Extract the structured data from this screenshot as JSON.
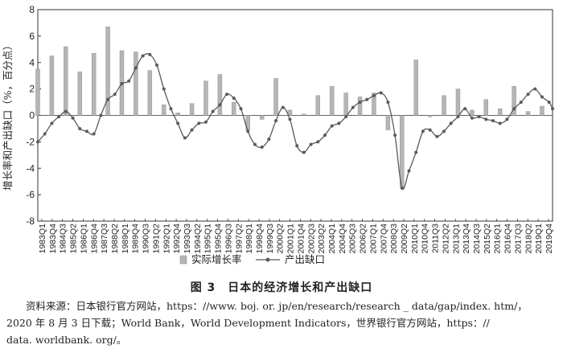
{
  "chart_data": {
    "type": "bar+line",
    "ylabel": "增长率和产出缺口（%，百分点）",
    "ylim": [
      -8,
      8
    ],
    "yticks": [
      -8,
      -6,
      -4,
      -2,
      0,
      2,
      4,
      6,
      8
    ],
    "xlabels": [
      "1983Q1",
      "1983Q4",
      "1984Q3",
      "1985Q2",
      "1986Q1",
      "1986Q4",
      "1987Q3",
      "1988Q2",
      "1989Q1",
      "1989Q4",
      "1990Q3",
      "1991Q2",
      "1992Q1",
      "1992Q4",
      "1993Q3",
      "1994Q2",
      "1995Q1",
      "1995Q4",
      "1996Q3",
      "1997Q2",
      "1998Q1",
      "1998Q4",
      "1999Q3",
      "2000Q2",
      "2001Q1",
      "2001Q4",
      "2002Q3",
      "2003Q2",
      "2004Q1",
      "2004Q4",
      "2005Q3",
      "2006Q2",
      "2007Q1",
      "2007Q4",
      "2008Q3",
      "2009Q2",
      "2010Q1",
      "2010Q4",
      "2011Q3",
      "2012Q2",
      "2013Q1",
      "2013Q4",
      "2014Q3",
      "2015Q2",
      "2016Q1",
      "2016Q4",
      "2017Q3",
      "2018Q2",
      "2019Q1",
      "2019Q4"
    ],
    "grid": false,
    "legend_position": "bottom",
    "series": [
      {
        "name": "实际增长率",
        "kind": "bar",
        "color": "#b5b5b5",
        "x": [
          "1983",
          "1984",
          "1985",
          "1986",
          "1987",
          "1988",
          "1989",
          "1990",
          "1991",
          "1992",
          "1993",
          "1994",
          "1995",
          "1996",
          "1997",
          "1998",
          "1999",
          "2000",
          "2001",
          "2002",
          "2003",
          "2004",
          "2005",
          "2006",
          "2007",
          "2008",
          "2009",
          "2010",
          "2011",
          "2012",
          "2013",
          "2014",
          "2015",
          "2016",
          "2017",
          "2018",
          "2019"
        ],
        "values": [
          3.5,
          4.5,
          5.2,
          3.3,
          4.7,
          6.7,
          4.9,
          4.8,
          3.4,
          0.8,
          0.2,
          0.9,
          2.6,
          3.1,
          1.0,
          -1.1,
          -0.3,
          2.8,
          0.4,
          0.1,
          1.5,
          2.2,
          1.7,
          1.4,
          1.7,
          -1.1,
          -5.4,
          4.2,
          -0.1,
          1.5,
          2.0,
          0.4,
          1.2,
          0.5,
          2.2,
          0.3,
          0.7
        ]
      },
      {
        "name": "产出缺口",
        "kind": "line",
        "color": "#5a5a5a",
        "x": [
          "1983",
          "1983.5",
          "1984",
          "1984.5",
          "1985",
          "1985.5",
          "1986",
          "1986.5",
          "1987",
          "1987.5",
          "1988",
          "1988.5",
          "1989",
          "1989.5",
          "1990",
          "1990.5",
          "1991",
          "1991.5",
          "1992",
          "1992.5",
          "1993",
          "1993.5",
          "1994",
          "1994.5",
          "1995",
          "1995.5",
          "1996",
          "1996.5",
          "1997",
          "1997.5",
          "1998",
          "1998.5",
          "1999",
          "1999.5",
          "2000",
          "2000.5",
          "2001",
          "2001.5",
          "2002",
          "2002.5",
          "2003",
          "2003.5",
          "2004",
          "2004.5",
          "2005",
          "2005.5",
          "2006",
          "2006.5",
          "2007",
          "2007.5",
          "2008",
          "2008.5",
          "2009",
          "2009.5",
          "2010",
          "2010.5",
          "2011",
          "2011.5",
          "2012",
          "2012.5",
          "2013",
          "2013.5",
          "2014",
          "2014.5",
          "2015",
          "2015.5",
          "2016",
          "2016.5",
          "2017",
          "2017.5",
          "2018",
          "2018.5",
          "2019",
          "2019.5",
          "2019.75"
        ],
        "values": [
          -2.0,
          -1.4,
          -0.6,
          -0.1,
          0.3,
          -0.2,
          -1.0,
          -1.2,
          -1.4,
          0.0,
          1.2,
          1.6,
          2.4,
          2.6,
          3.6,
          4.5,
          4.6,
          3.8,
          2.0,
          0.5,
          -0.6,
          -1.7,
          -1.1,
          -0.6,
          -0.5,
          0.3,
          0.8,
          1.6,
          1.3,
          0.5,
          -1.2,
          -2.2,
          -2.4,
          -1.8,
          -0.4,
          0.6,
          -0.3,
          -2.3,
          -2.8,
          -2.2,
          -2.0,
          -1.5,
          -0.8,
          -0.6,
          -0.1,
          0.6,
          1.0,
          1.2,
          1.5,
          1.7,
          1.0,
          -1.5,
          -5.5,
          -4.2,
          -2.8,
          -1.2,
          -1.1,
          -1.6,
          -1.2,
          -0.6,
          -0.1,
          0.5,
          -0.2,
          -0.1,
          -0.3,
          -0.4,
          -0.6,
          -0.3,
          0.5,
          1.0,
          1.6,
          2.0,
          1.4,
          1.0,
          0.5
        ]
      }
    ]
  },
  "caption": "图 3　日本的经济增长和产出缺口",
  "source_lines": [
    "资料来源：日本银行官方网站，https：//www. boj. or. jp/en/research/research _ data/gap/index. htm/，",
    "2020 年 8 月 3 日下载；World Bank，World Development Indicators，世界银行官方网站，https：//",
    "data. worldbank. org/。"
  ]
}
